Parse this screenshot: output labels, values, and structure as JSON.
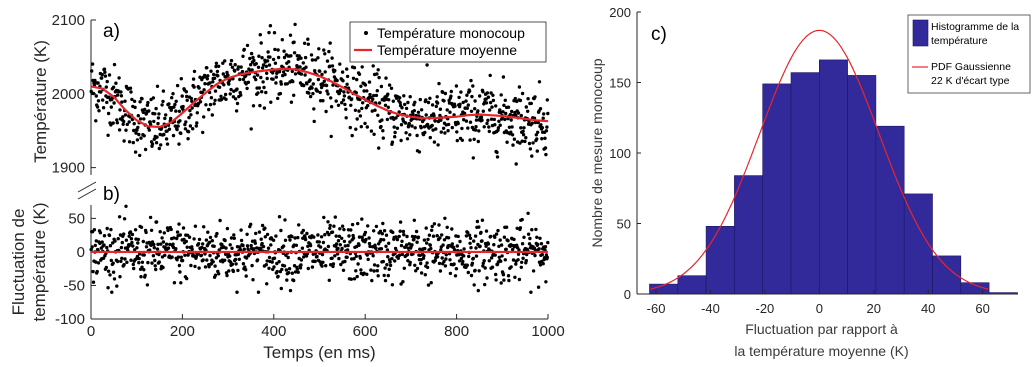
{
  "chart_data": [
    {
      "type": "scatter",
      "panel": "a)",
      "ylabel": "Température (K)",
      "xlim": [
        0,
        1000
      ],
      "ylim": [
        1890,
        2100
      ],
      "yticks": [
        1900,
        2000,
        2100
      ],
      "legend": {
        "placement": "top-right",
        "entries": [
          "Température monocoup",
          "Température moyenne"
        ]
      },
      "series": [
        {
          "name": "Température monocoup",
          "kind": "points",
          "color": "#000000",
          "mean_trend": "Température moyenne",
          "noise_sd": 22,
          "count": 1000
        },
        {
          "name": "Température moyenne",
          "kind": "line",
          "color": "#e8262a",
          "x": [
            0,
            25,
            50,
            75,
            100,
            125,
            150,
            175,
            200,
            225,
            250,
            275,
            300,
            325,
            350,
            375,
            400,
            425,
            450,
            475,
            500,
            525,
            550,
            575,
            600,
            625,
            650,
            675,
            700,
            725,
            750,
            775,
            800,
            825,
            850,
            875,
            900,
            925,
            950,
            975,
            1000
          ],
          "y": [
            2010,
            2007,
            1996,
            1978,
            1964,
            1956,
            1955,
            1961,
            1974,
            1988,
            2001,
            2013,
            2021,
            2026,
            2029,
            2031,
            2033,
            2034,
            2033,
            2029,
            2024,
            2017,
            2009,
            2000,
            1992,
            1984,
            1977,
            1972,
            1969,
            1967,
            1967,
            1968,
            1969,
            1971,
            1972,
            1971,
            1970,
            1968,
            1966,
            1964,
            1963
          ]
        }
      ]
    },
    {
      "type": "scatter",
      "panel": "b)",
      "xlabel": "Temps (en ms)",
      "ylabel": [
        "Fluctuation de",
        "température (K)"
      ],
      "xlim": [
        0,
        1000
      ],
      "ylim": [
        -100,
        70
      ],
      "xticks": [
        0,
        200,
        400,
        600,
        800,
        1000
      ],
      "yticks": [
        -100,
        -50,
        0,
        50
      ],
      "series": [
        {
          "name": "Fluctuation",
          "kind": "points",
          "color": "#000000",
          "mean": 0,
          "noise_sd": 22,
          "count": 1000
        },
        {
          "name": "Zéro",
          "kind": "line",
          "color": "#e8262a",
          "x": [
            0,
            1000
          ],
          "y": [
            0,
            0
          ]
        }
      ]
    },
    {
      "type": "bar",
      "panel": "c)",
      "xlabel": [
        "Fluctuation par rapport à",
        "la température moyenne (K)"
      ],
      "ylabel": "Nombre de mesure monocoup",
      "xlim": [
        -67,
        73
      ],
      "ylim": [
        0,
        200
      ],
      "xticks": [
        -60,
        -40,
        -20,
        0,
        20,
        40,
        60
      ],
      "yticks": [
        0,
        50,
        100,
        150,
        200
      ],
      "bin_width": 10.4,
      "bin_centers": [
        -57.2,
        -46.8,
        -36.4,
        -26.0,
        -15.6,
        -5.2,
        5.2,
        15.6,
        26.0,
        36.4,
        46.8,
        57.2,
        67.6
      ],
      "values": [
        7,
        13,
        48,
        84,
        149,
        157,
        166,
        155,
        119,
        71,
        27,
        8,
        1
      ],
      "bar_color": "#322a9b",
      "gaussian": {
        "color": "#e8262a",
        "mean": 0,
        "sd": 22,
        "peak": 187
      },
      "legend": {
        "placement": "top-right",
        "entries": [
          [
            "Histogramme de la",
            "température"
          ],
          [
            "PDF Gaussienne",
            "22 K d'écart type"
          ]
        ]
      }
    }
  ]
}
